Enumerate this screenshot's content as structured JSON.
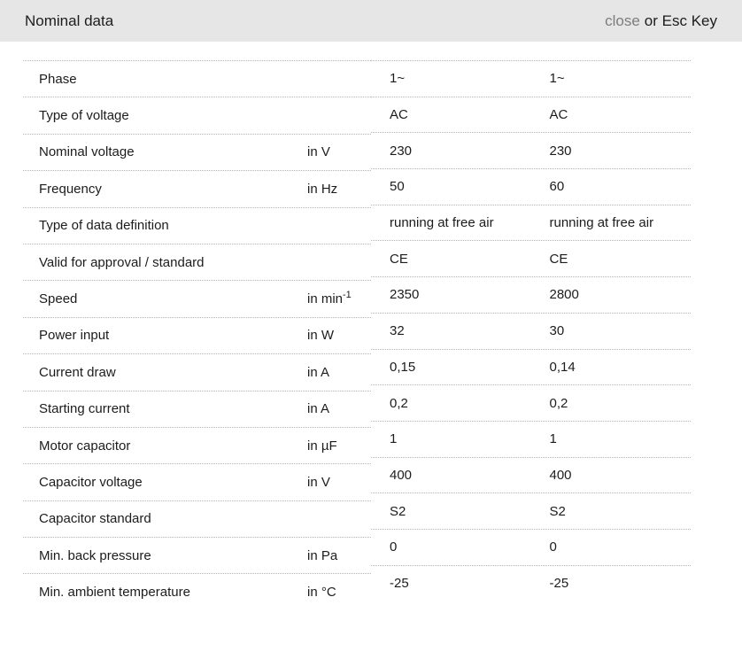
{
  "header": {
    "title": "Nominal data",
    "close_label": "close",
    "close_suffix": "or Esc Key"
  },
  "colors": {
    "header_bar": "#e6e6e6",
    "close_link": "#7d7d7d",
    "text": "#1c1c1c",
    "row_divider": "#b5b5b5"
  },
  "table": {
    "rows": [
      {
        "label": "Phase",
        "unit": "",
        "unit_sup": "",
        "values": [
          "1~",
          "1~"
        ]
      },
      {
        "label": "Type of voltage",
        "unit": "",
        "unit_sup": "",
        "values": [
          "AC",
          "AC"
        ]
      },
      {
        "label": "Nominal voltage",
        "unit": "in V",
        "unit_sup": "",
        "values": [
          "230",
          "230"
        ]
      },
      {
        "label": "Frequency",
        "unit": "in Hz",
        "unit_sup": "",
        "values": [
          "50",
          "60"
        ]
      },
      {
        "label": "Type of data definition",
        "unit": "",
        "unit_sup": "",
        "values": [
          "running at free air",
          "running at free air"
        ]
      },
      {
        "label": "Valid for approval / standard",
        "unit": "",
        "unit_sup": "",
        "values": [
          "CE",
          "CE"
        ]
      },
      {
        "label": "Speed",
        "unit": "in min",
        "unit_sup": "-1",
        "values": [
          "2350",
          "2800"
        ]
      },
      {
        "label": "Power input",
        "unit": "in W",
        "unit_sup": "",
        "values": [
          "32",
          "30"
        ]
      },
      {
        "label": "Current draw",
        "unit": "in A",
        "unit_sup": "",
        "values": [
          "0,15",
          "0,14"
        ]
      },
      {
        "label": "Starting current",
        "unit": "in A",
        "unit_sup": "",
        "values": [
          "0,2",
          "0,2"
        ]
      },
      {
        "label": "Motor capacitor",
        "unit": "in µF",
        "unit_sup": "",
        "values": [
          "1",
          "1"
        ]
      },
      {
        "label": "Capacitor voltage",
        "unit": "in V",
        "unit_sup": "",
        "values": [
          "400",
          "400"
        ]
      },
      {
        "label": "Capacitor standard",
        "unit": "",
        "unit_sup": "",
        "values": [
          "S2",
          "S2"
        ]
      },
      {
        "label": "Min. back pressure",
        "unit": "in Pa",
        "unit_sup": "",
        "values": [
          "0",
          "0"
        ]
      },
      {
        "label": "Min. ambient temperature",
        "unit": "in °C",
        "unit_sup": "",
        "values": [
          "-25",
          "-25"
        ]
      }
    ]
  }
}
